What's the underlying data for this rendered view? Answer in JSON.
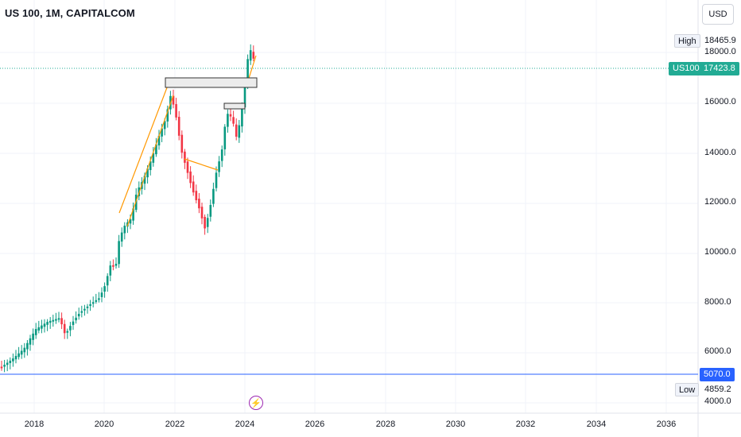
{
  "header": {
    "title": "US 100, 1M, CAPITALCOM"
  },
  "currency_button": "USD",
  "price_axis": {
    "labels": [
      "18000.0",
      "16000.0",
      "14000.0",
      "12000.0",
      "10000.0",
      "8000.0",
      "6000.0",
      "4000.0"
    ],
    "high": {
      "label": "High",
      "value": "18465.9"
    },
    "low": {
      "label": "Low",
      "value": "4859.2"
    },
    "current": {
      "symbol": "US100",
      "value": "17423.8"
    },
    "level": {
      "value": "5070.0"
    }
  },
  "time_axis": {
    "labels": [
      "2018",
      "2020",
      "2022",
      "2024",
      "2026",
      "2028",
      "2030",
      "2032",
      "2034",
      "2036"
    ]
  },
  "event_icon": "lightning-icon",
  "colors": {
    "up": "#089981",
    "down": "#f23645",
    "level_line": "#2962ff",
    "current": "#22ab94",
    "trendline": "#ff9800",
    "event": "#9c27b0"
  }
}
